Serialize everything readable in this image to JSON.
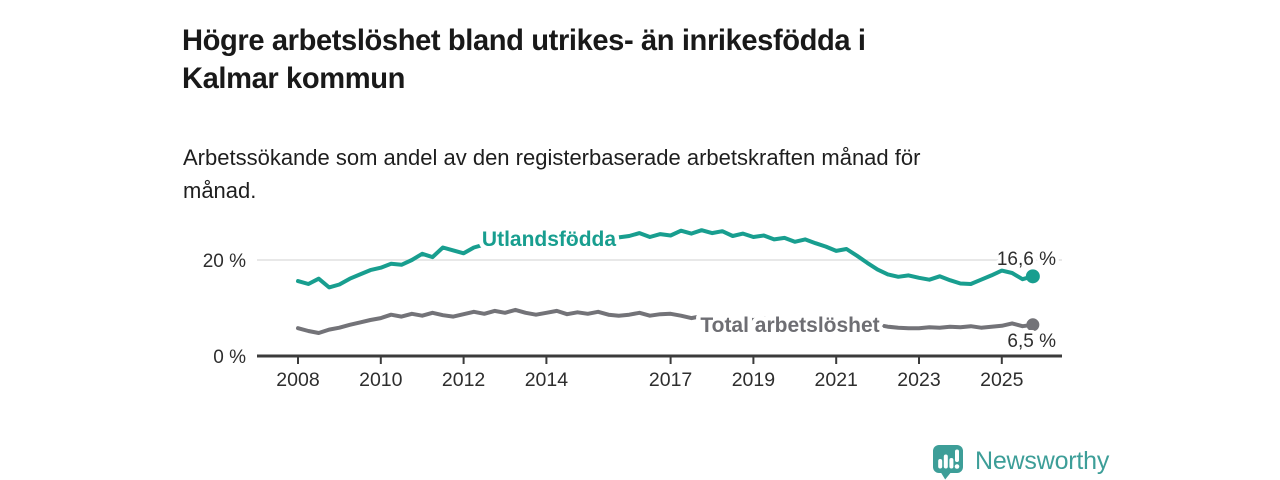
{
  "header": {
    "title_lines": [
      "Högre arbetslöshet bland utrikes- än inrikesfödda i",
      "Kalmar kommun"
    ],
    "subtitle_lines": [
      "Arbetssökande som andel av den registerbaserade arbetskraften månad för",
      "månad."
    ]
  },
  "chart_data": {
    "type": "line",
    "x_label_note": "year, monthly (quarterly sampled) data",
    "x_ticks": [
      "2008",
      "2010",
      "2012",
      "2014",
      "2017",
      "2019",
      "2021",
      "2023",
      "2025"
    ],
    "x_tick_years": [
      2008,
      2010,
      2012,
      2014,
      2017,
      2019,
      2021,
      2023,
      2025
    ],
    "y_ticks": [
      {
        "label": "20 %",
        "value": 20
      },
      {
        "label": "0 %",
        "value": 0
      }
    ],
    "grid_values": [
      20
    ],
    "ylim": [
      0,
      27.5
    ],
    "xlim": [
      2007,
      2026.5
    ],
    "legend_position": "inline-on-line",
    "grid": "horizontal-only",
    "series": [
      {
        "name": "Utlandsfödda",
        "color": "#189e8f",
        "label_color": "#189e8f",
        "end_label": "16,6 %",
        "end_value": 16.6,
        "x": [
          2008,
          2008.25,
          2008.5,
          2008.75,
          2009,
          2009.25,
          2009.5,
          2009.75,
          2010,
          2010.25,
          2010.5,
          2010.75,
          2011,
          2011.25,
          2011.5,
          2011.75,
          2012,
          2012.25,
          2012.5,
          2012.75,
          2013,
          2013.25,
          2013.5,
          2013.75,
          2014,
          2014.25,
          2014.5,
          2014.75,
          2015,
          2015.25,
          2015.5,
          2015.75,
          2016,
          2016.25,
          2016.5,
          2016.75,
          2017,
          2017.25,
          2017.5,
          2017.75,
          2018,
          2018.25,
          2018.5,
          2018.75,
          2019,
          2019.25,
          2019.5,
          2019.75,
          2020,
          2020.25,
          2020.5,
          2020.75,
          2021,
          2021.25,
          2021.5,
          2021.75,
          2022,
          2022.25,
          2022.5,
          2022.75,
          2023,
          2023.25,
          2023.5,
          2023.75,
          2024,
          2024.25,
          2024.5,
          2024.75,
          2025,
          2025.25,
          2025.5,
          2025.75
        ],
        "values": [
          15.6,
          15.0,
          16.1,
          14.3,
          14.9,
          16.1,
          17.0,
          17.9,
          18.4,
          19.2,
          19.0,
          20.0,
          21.3,
          20.6,
          22.6,
          22.0,
          21.4,
          22.6,
          23.2,
          23.6,
          23.4,
          24.0,
          23.6,
          24.1,
          23.8,
          24.4,
          24.0,
          24.6,
          24.2,
          24.8,
          24.4,
          24.7,
          25.0,
          25.6,
          24.8,
          25.4,
          25.1,
          26.1,
          25.5,
          26.2,
          25.6,
          26.0,
          25.0,
          25.5,
          24.8,
          25.1,
          24.3,
          24.6,
          23.8,
          24.3,
          23.5,
          22.8,
          21.9,
          22.3,
          20.9,
          19.4,
          18.0,
          17.0,
          16.5,
          16.8,
          16.3,
          15.9,
          16.6,
          15.8,
          15.1,
          15.0,
          15.9,
          16.8,
          17.8,
          17.3,
          16.0,
          16.6
        ]
      },
      {
        "name": "Total arbetslöshet",
        "color": "#737378",
        "label_color": "#6e6e73",
        "end_label": "6,5 %",
        "end_value": 6.5,
        "x": [
          2008,
          2008.25,
          2008.5,
          2008.75,
          2009,
          2009.25,
          2009.5,
          2009.75,
          2010,
          2010.25,
          2010.5,
          2010.75,
          2011,
          2011.25,
          2011.5,
          2011.75,
          2012,
          2012.25,
          2012.5,
          2012.75,
          2013,
          2013.25,
          2013.5,
          2013.75,
          2014,
          2014.25,
          2014.5,
          2014.75,
          2015,
          2015.25,
          2015.5,
          2015.75,
          2016,
          2016.25,
          2016.5,
          2016.75,
          2017,
          2017.25,
          2017.5,
          2017.75,
          2018,
          2018.25,
          2018.5,
          2018.75,
          2019,
          2019.25,
          2019.5,
          2019.75,
          2020,
          2020.25,
          2020.5,
          2020.75,
          2021,
          2021.25,
          2021.5,
          2021.75,
          2022,
          2022.25,
          2022.5,
          2022.75,
          2023,
          2023.25,
          2023.5,
          2023.75,
          2024,
          2024.25,
          2024.5,
          2024.75,
          2025,
          2025.25,
          2025.5,
          2025.75
        ],
        "values": [
          5.8,
          5.2,
          4.8,
          5.5,
          5.9,
          6.5,
          7.0,
          7.5,
          7.9,
          8.6,
          8.2,
          8.8,
          8.4,
          9.0,
          8.5,
          8.2,
          8.7,
          9.2,
          8.8,
          9.4,
          9.0,
          9.6,
          9.0,
          8.6,
          9.0,
          9.4,
          8.7,
          9.1,
          8.8,
          9.2,
          8.6,
          8.4,
          8.6,
          9.0,
          8.4,
          8.7,
          8.8,
          8.4,
          7.9,
          8.3,
          8.0,
          7.7,
          7.3,
          7.7,
          7.5,
          7.8,
          7.3,
          7.5,
          7.2,
          7.8,
          7.4,
          7.6,
          7.4,
          7.6,
          7.1,
          6.8,
          6.5,
          6.1,
          5.9,
          5.8,
          5.8,
          6.0,
          5.9,
          6.1,
          6.0,
          6.2,
          5.9,
          6.1,
          6.3,
          6.8,
          6.2,
          6.5
        ]
      }
    ],
    "colors": {
      "gridline": "#d9d9d9",
      "axis": "#3b3b3b",
      "text": "#2e2e2e"
    }
  },
  "footer": {
    "brand": "Newsworthy",
    "brand_color": "#3d9e98"
  }
}
